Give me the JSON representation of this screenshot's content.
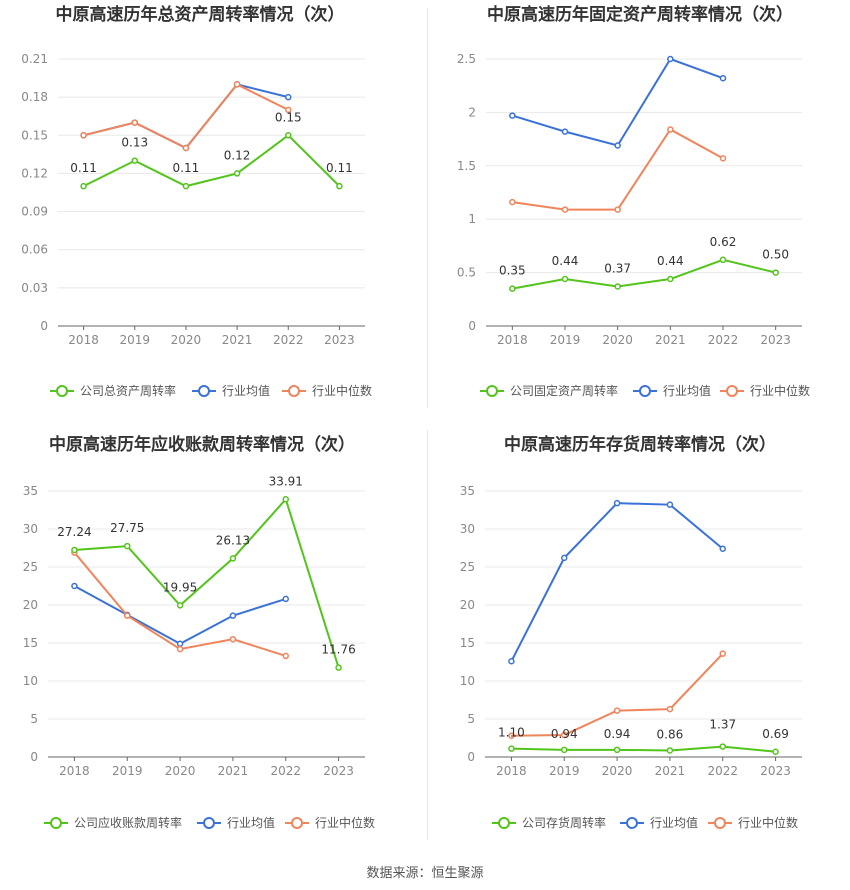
{
  "source_label": "数据来源：恒生聚源",
  "colors": {
    "company": "#52c41a",
    "avg": "#3a72d8",
    "median": "#f0845a"
  },
  "chart_data": [
    {
      "type": "line",
      "title": "中原高速历年总资产周转率情况（次）",
      "x": [
        "2018",
        "2019",
        "2020",
        "2021",
        "2022",
        "2023"
      ],
      "ylim": [
        0,
        0.21
      ],
      "yticks": [
        "0",
        "0.03",
        "0.06",
        "0.09",
        "0.12",
        "0.15",
        "0.18",
        "0.21"
      ],
      "series": [
        {
          "name": "公司总资产周转率",
          "values": [
            0.11,
            0.13,
            0.11,
            0.12,
            0.15,
            0.11
          ],
          "labels": [
            "0.11",
            "0.13",
            "0.11",
            "0.12",
            "0.15",
            "0.11"
          ]
        },
        {
          "name": "行业均值",
          "values": [
            0.15,
            0.16,
            0.14,
            0.19,
            0.18,
            null
          ]
        },
        {
          "name": "行业中位数",
          "values": [
            0.15,
            0.16,
            0.14,
            0.19,
            0.17,
            null
          ]
        }
      ],
      "grid": true,
      "legend": "bottom"
    },
    {
      "type": "line",
      "title": "中原高速历年固定资产周转率情况（次）",
      "x": [
        "2018",
        "2019",
        "2020",
        "2021",
        "2022",
        "2023"
      ],
      "ylim": [
        0,
        2.5
      ],
      "yticks": [
        "0",
        "0.5",
        "1",
        "1.5",
        "2",
        "2.5"
      ],
      "series": [
        {
          "name": "公司固定资产周转率",
          "values": [
            0.35,
            0.44,
            0.37,
            0.44,
            0.62,
            0.5
          ],
          "labels": [
            "0.35",
            "0.44",
            "0.37",
            "0.44",
            "0.62",
            "0.50"
          ]
        },
        {
          "name": "行业均值",
          "values": [
            1.97,
            1.82,
            1.69,
            2.5,
            2.32,
            null
          ]
        },
        {
          "name": "行业中位数",
          "values": [
            1.16,
            1.09,
            1.09,
            1.84,
            1.57,
            null
          ]
        }
      ],
      "grid": true,
      "legend": "bottom"
    },
    {
      "type": "line",
      "title": "中原高速历年应收账款周转率情况（次）",
      "x": [
        "2018",
        "2019",
        "2020",
        "2021",
        "2022",
        "2023"
      ],
      "ylim": [
        0,
        35
      ],
      "yticks": [
        "0",
        "5",
        "10",
        "15",
        "20",
        "25",
        "30",
        "35"
      ],
      "series": [
        {
          "name": "公司应收账款周转率",
          "values": [
            27.24,
            27.75,
            19.95,
            26.13,
            33.91,
            11.76
          ],
          "labels": [
            "27.24",
            "27.75",
            "19.95",
            "26.13",
            "33.91",
            "11.76"
          ]
        },
        {
          "name": "行业均值",
          "values": [
            22.5,
            18.7,
            14.9,
            18.6,
            20.8,
            null
          ]
        },
        {
          "name": "行业中位数",
          "values": [
            26.9,
            18.6,
            14.2,
            15.5,
            13.3,
            null
          ]
        }
      ],
      "grid": true,
      "legend": "bottom"
    },
    {
      "type": "line",
      "title": "中原高速历年存货周转率情况（次）",
      "x": [
        "2018",
        "2019",
        "2020",
        "2021",
        "2022",
        "2023"
      ],
      "ylim": [
        0,
        35
      ],
      "yticks": [
        "0",
        "5",
        "10",
        "15",
        "20",
        "25",
        "30",
        "35"
      ],
      "series": [
        {
          "name": "公司存货周转率",
          "values": [
            1.1,
            0.94,
            0.94,
            0.86,
            1.37,
            0.69
          ],
          "labels": [
            "1.10",
            "0.94",
            "0.94",
            "0.86",
            "1.37",
            "0.69"
          ]
        },
        {
          "name": "行业均值",
          "values": [
            12.6,
            26.2,
            33.4,
            33.2,
            27.4,
            null
          ]
        },
        {
          "name": "行业中位数",
          "values": [
            2.8,
            2.9,
            6.1,
            6.3,
            13.6,
            null
          ]
        }
      ],
      "grid": true,
      "legend": "bottom"
    }
  ]
}
